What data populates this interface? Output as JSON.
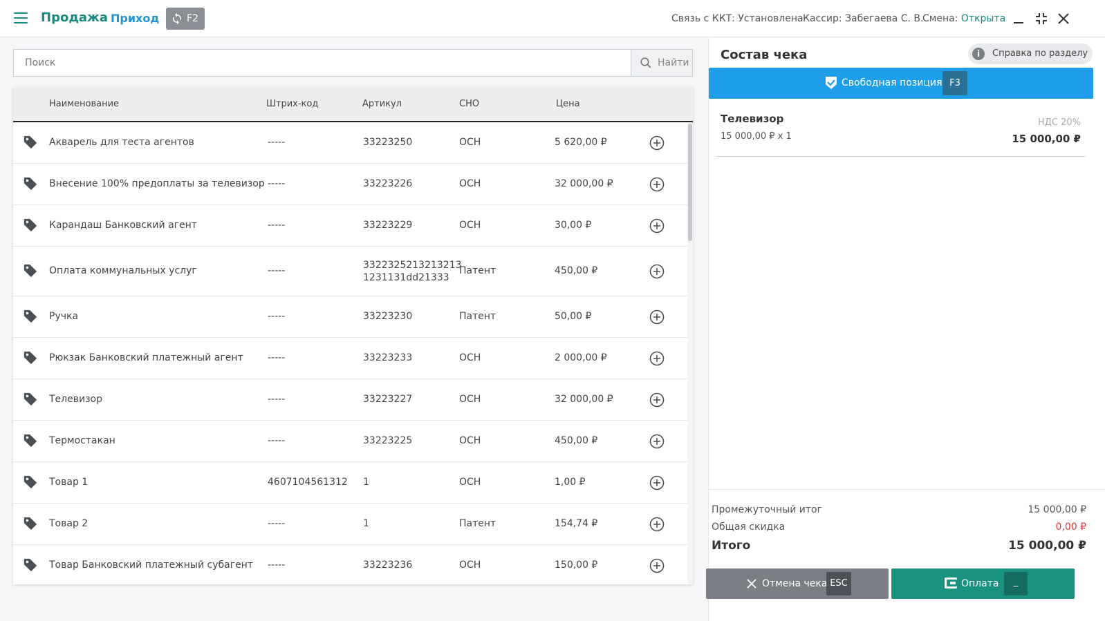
{
  "header": {
    "tab_sale": "Продажа",
    "tab_income": "Приход",
    "sync_key": "F2",
    "kkt_label": "Связь с ККТ:",
    "kkt_value": "Установлена",
    "cashier_label": "Кассир:",
    "cashier_value": "Забегаева С. В.",
    "shift_label": "Смена:",
    "shift_value": "Открыта"
  },
  "search": {
    "placeholder": "Поиск",
    "button_label": "Найти"
  },
  "table": {
    "columns": [
      "Наименование",
      "Штрих-код",
      "Артикул",
      "СНО",
      "Цена"
    ],
    "rows": [
      {
        "name": "Акварель для теста агентов",
        "barcode": "-----",
        "article": "33223250",
        "sno": "ОСН",
        "price": "5 620,00 ₽"
      },
      {
        "name": "Внесение 100% предоплаты за телевизор",
        "barcode": "-----",
        "article": "33223226",
        "sno": "ОСН",
        "price": "32 000,00 ₽"
      },
      {
        "name": "Карандаш Банковский агент",
        "barcode": "-----",
        "article": "33223229",
        "sno": "ОСН",
        "price": "30,00 ₽"
      },
      {
        "name": "Оплата коммунальных услуг",
        "barcode": "-----",
        "article": "3322325213213213",
        "article2": "1231131dd21333",
        "sno": "Патент",
        "price": "450,00 ₽"
      },
      {
        "name": "Ручка",
        "barcode": "-----",
        "article": "33223230",
        "sno": "Патент",
        "price": "50,00 ₽"
      },
      {
        "name": "Рюкзак Банковский платежный агент",
        "barcode": "-----",
        "article": "33223233",
        "sno": "ОСН",
        "price": "2 000,00 ₽"
      },
      {
        "name": "Телевизор",
        "barcode": "-----",
        "article": "33223227",
        "sno": "ОСН",
        "price": "32 000,00 ₽"
      },
      {
        "name": "Термостакан",
        "barcode": "-----",
        "article": "33223225",
        "sno": "ОСН",
        "price": "450,00 ₽"
      },
      {
        "name": "Товар 1",
        "barcode": "4607104561312",
        "article": "1",
        "sno": "ОСН",
        "price": "1,00 ₽"
      },
      {
        "name": "Товар 2",
        "barcode": "-----",
        "article": "1",
        "sno": "Патент",
        "price": "154,74 ₽"
      },
      {
        "name": "Товар Банковский платежный субагент",
        "barcode": "-----",
        "article": "33223236",
        "sno": "ОСН",
        "price": "150,00 ₽"
      }
    ]
  },
  "receipt": {
    "title": "Состав чека",
    "help_label": "Справка по разделу",
    "free_position_label": "Свободная позиция",
    "free_position_key": "F3",
    "items": [
      {
        "name": "Телевизор",
        "qty_line": "15 000,00 ₽ x 1",
        "vat": "НДС 20%",
        "sum": "15 000,00 ₽"
      }
    ],
    "subtotal_label": "Промежуточный итог",
    "subtotal_value": "15 000,00 ₽",
    "discount_label": "Общая скидка",
    "discount_value": "0,00 ₽",
    "total_label": "Итого",
    "total_value": "15 000,00 ₽",
    "cancel_label": "Отмена чека",
    "cancel_key": "ESC",
    "pay_label": "Оплата",
    "pay_key": "_"
  },
  "colors": {
    "brand_green": "#188a80",
    "accent_blue": "#1e9ee8",
    "pay_green": "#1a9280",
    "discount_red": "#e53935"
  },
  "icons": [
    "menu-icon",
    "sync-icon",
    "minimize-icon",
    "compress-icon",
    "close-icon",
    "search-icon",
    "tag-icon",
    "add-circle-icon",
    "info-icon",
    "check-shield-icon",
    "cross-icon",
    "wallet-icon"
  ]
}
